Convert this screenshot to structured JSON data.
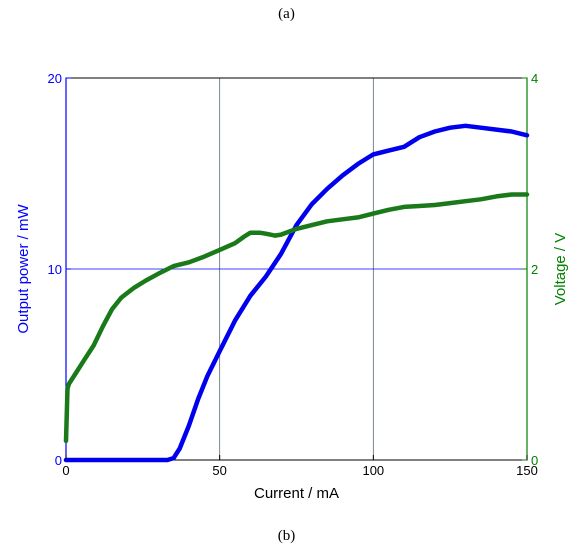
{
  "captions": {
    "top": "(a)",
    "bottom": "(b)"
  },
  "colors": {
    "left_axis": "#0000ff",
    "right_axis": "#008000",
    "power": "#0000ee",
    "voltage": "#1a7a1a",
    "grid": "#5a6a7a"
  },
  "chart_data": {
    "type": "line",
    "xlabel": "Current / mA",
    "ylabel_left": "Output power / mW",
    "ylabel_right": "Voltage / V",
    "xlim": [
      0,
      150
    ],
    "ylim_left": [
      0,
      20
    ],
    "ylim_right": [
      0,
      4
    ],
    "xticks": [
      0,
      50,
      100,
      150
    ],
    "yticks_left": [
      0,
      10,
      20
    ],
    "yticks_right": [
      0,
      2,
      4
    ],
    "grid": true,
    "series": [
      {
        "axis": "left",
        "x": [
          0,
          10,
          20,
          30,
          33,
          35,
          37,
          40,
          43,
          46,
          50,
          55,
          60,
          65,
          70,
          75,
          80,
          85,
          90,
          95,
          100,
          105,
          110,
          115,
          120,
          125,
          130,
          135,
          140,
          145,
          150
        ],
        "values": [
          0,
          0,
          0,
          0,
          0,
          0.1,
          0.6,
          1.8,
          3.2,
          4.4,
          5.7,
          7.3,
          8.6,
          9.6,
          10.8,
          12.3,
          13.4,
          14.2,
          14.9,
          15.5,
          16.0,
          16.2,
          16.4,
          16.9,
          17.2,
          17.4,
          17.5,
          17.4,
          17.3,
          17.2,
          17.0
        ]
      },
      {
        "axis": "right",
        "x": [
          0,
          0.5,
          1,
          3,
          6,
          9,
          12,
          15,
          18,
          22,
          26,
          30,
          35,
          40,
          45,
          50,
          55,
          58,
          60,
          63,
          65,
          68,
          70,
          75,
          80,
          85,
          90,
          95,
          100,
          105,
          110,
          115,
          120,
          125,
          130,
          135,
          140,
          145,
          150
        ],
        "values": [
          0.2,
          0.75,
          0.8,
          0.9,
          1.05,
          1.2,
          1.4,
          1.58,
          1.7,
          1.8,
          1.88,
          1.95,
          2.03,
          2.07,
          2.13,
          2.2,
          2.27,
          2.34,
          2.38,
          2.38,
          2.37,
          2.35,
          2.36,
          2.42,
          2.46,
          2.5,
          2.52,
          2.54,
          2.58,
          2.62,
          2.65,
          2.66,
          2.67,
          2.69,
          2.71,
          2.73,
          2.76,
          2.78,
          2.78
        ]
      }
    ]
  }
}
